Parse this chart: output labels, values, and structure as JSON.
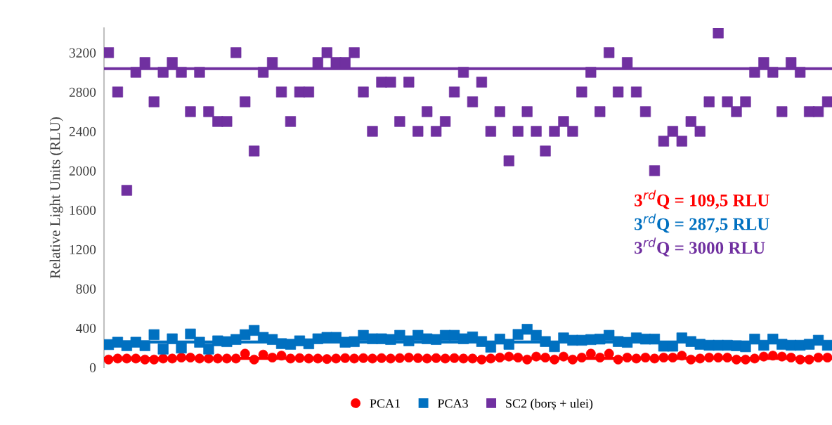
{
  "chart_data": {
    "type": "scatter",
    "ylabel": "Relative Light Units (RLU)",
    "categories": [
      null,
      null,
      null,
      null,
      null,
      null,
      null,
      null,
      null,
      null,
      null,
      null,
      null,
      null,
      null,
      null,
      null,
      null,
      null,
      null,
      null,
      null,
      null,
      null,
      null,
      null,
      null,
      null,
      null,
      null,
      null,
      null,
      null,
      null,
      null,
      null,
      null,
      null,
      null,
      null,
      null,
      null,
      null,
      null,
      null,
      null,
      null,
      null,
      null,
      null,
      null,
      null,
      null,
      null,
      null,
      null,
      null,
      null,
      null,
      null,
      null,
      null,
      null,
      null,
      null,
      null,
      null,
      null,
      null,
      null,
      null,
      null,
      null,
      null,
      null,
      null,
      null,
      null,
      null,
      null
    ],
    "ylim": [
      0,
      3450
    ],
    "yticks": [
      0,
      400,
      800,
      1200,
      1600,
      2000,
      2400,
      2800,
      3200
    ],
    "tick_labels": "y",
    "legend": "bottom",
    "series": [
      {
        "name": "PCA1",
        "marker": "circle",
        "color": "#ff0000",
        "values": [
          80,
          90,
          90,
          90,
          80,
          80,
          90,
          90,
          100,
          100,
          90,
          90,
          90,
          90,
          90,
          140,
          80,
          130,
          100,
          120,
          90,
          95,
          90,
          90,
          85,
          90,
          95,
          90,
          95,
          90,
          95,
          90,
          95,
          100,
          95,
          90,
          95,
          90,
          95,
          90,
          90,
          80,
          90,
          100,
          110,
          100,
          80,
          110,
          100,
          80,
          110,
          80,
          100,
          140,
          100,
          140,
          80,
          100,
          90,
          100,
          90,
          100,
          100,
          120,
          80,
          90,
          100,
          100,
          100,
          80,
          80,
          90,
          110,
          120,
          110,
          100,
          80,
          80,
          100,
          100
        ]
      },
      {
        "name": "PCA3",
        "marker": "square",
        "color": "#0070c0",
        "values": [
          232,
          256,
          221,
          256,
          221,
          333,
          186,
          291,
          197,
          340,
          256,
          186,
          270,
          262,
          284,
          333,
          376,
          305,
          284,
          242,
          235,
          270,
          240,
          291,
          305,
          305,
          256,
          262,
          326,
          291,
          291,
          284,
          326,
          270,
          326,
          291,
          284,
          326,
          326,
          291,
          310,
          263,
          206,
          288,
          235,
          335,
          388,
          326,
          263,
          211,
          300,
          276,
          276,
          283,
          288,
          326,
          263,
          255,
          300,
          288,
          288,
          216,
          216,
          300,
          263,
          235,
          225,
          225,
          225,
          220,
          210,
          288,
          225,
          288,
          235,
          225,
          225,
          235,
          276,
          225
        ]
      },
      {
        "name": "SC2 (borș + ulei)",
        "marker": "square",
        "color": "#7030a0",
        "values": [
          3200,
          2800,
          1800,
          3000,
          3100,
          2700,
          3000,
          3100,
          3000,
          2600,
          3000,
          2600,
          2500,
          2500,
          3200,
          2700,
          2200,
          3000,
          3100,
          2800,
          2500,
          2800,
          2800,
          3100,
          3200,
          3100,
          3100,
          3200,
          2800,
          2400,
          2900,
          2900,
          2500,
          2900,
          2400,
          2600,
          2400,
          2500,
          2800,
          3000,
          2700,
          2900,
          2400,
          2600,
          2100,
          2400,
          2600,
          2400,
          2200,
          2400,
          2500,
          2400,
          2800,
          3000,
          2600,
          3200,
          2800,
          3100,
          2800,
          2600,
          2000,
          2300,
          2400,
          2300,
          2500,
          2400,
          2700,
          3400,
          2700,
          2600,
          2700,
          3000,
          3100,
          3000,
          2600,
          3100,
          3000,
          2600,
          2600,
          2700
        ]
      }
    ],
    "ref_lines": [
      {
        "axis": "y",
        "value": 92,
        "color": "#ff0000"
      },
      {
        "axis": "y",
        "value": 258,
        "color": "#0070c0"
      },
      {
        "axis": "y",
        "value": 3037,
        "color": "#7030a0"
      }
    ],
    "annotations": [
      "3$^{rd}$Q = 109,5 RLU",
      "3$^{rd}$Q = 287,5 RLU",
      "3$^{rd}$Q = 3000 RLU"
    ]
  }
}
